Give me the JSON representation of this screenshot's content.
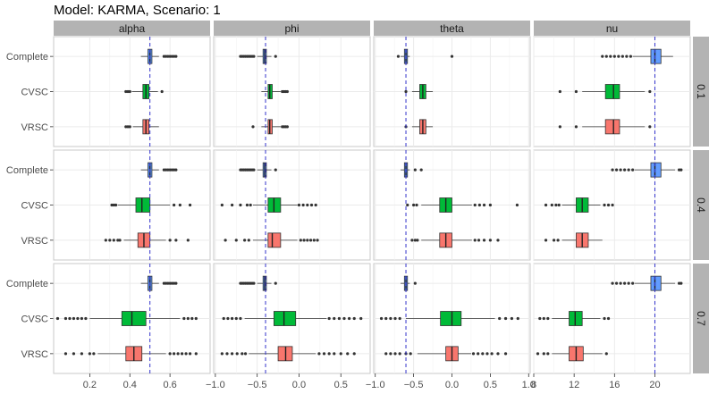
{
  "chart_data": {
    "type": "boxplot",
    "title": "Model: KARMA, Scenario: 1",
    "xlabel": "",
    "ylabel": "",
    "categories": [
      "Complete",
      "CVSC",
      "VRSC"
    ],
    "colors": {
      "Complete": "#619CFF",
      "CVSC": "#00BA38",
      "VRSC": "#F8766D"
    },
    "ref_line_color": "#3333cc",
    "strip_fill": "#b3b3b3",
    "panel_border": "#c8c8c8",
    "columns": [
      {
        "name": "alpha",
        "xlim": [
          0.02,
          0.8
        ],
        "ticks": [
          0.2,
          0.4,
          0.6
        ],
        "tick_labels": [
          "0.2",
          "0.4",
          "0.6"
        ],
        "true_value": 0.5
      },
      {
        "name": "phi",
        "xlim": [
          -1.02,
          0.85
        ],
        "ticks": [
          -1.0,
          -0.5,
          0.0,
          0.5
        ],
        "tick_labels": [
          "−1.0",
          "−0.5",
          "0.0",
          "0.5"
        ],
        "true_value": -0.4
      },
      {
        "name": "theta",
        "xlim": [
          -1.02,
          1.02
        ],
        "ticks": [
          -1.0,
          -0.5,
          0.0,
          0.5,
          1.0
        ],
        "tick_labels": [
          "−1.0",
          "−0.5",
          "0.0",
          "0.5",
          "1.0"
        ],
        "true_value": -0.6
      },
      {
        "name": "nu",
        "xlim": [
          8,
          23.5
        ],
        "ticks": [
          8,
          12,
          16,
          20
        ],
        "tick_labels": [
          "8",
          "12",
          "16",
          "20"
        ],
        "true_value": 20
      }
    ],
    "rows": [
      {
        "label": "0.1",
        "boxes": [
          [
            {
              "q1": 0.49,
              "med": 0.5,
              "q3": 0.51,
              "wlo": 0.455,
              "whi": 0.545,
              "outliers": [
                0.57,
                0.58,
                0.59,
                0.6,
                0.61,
                0.62,
                0.63
              ]
            },
            {
              "q1": 0.465,
              "med": 0.48,
              "q3": 0.495,
              "wlo": 0.41,
              "whi": 0.54,
              "outliers": [
                0.38,
                0.39,
                0.4,
                0.56
              ]
            },
            {
              "q1": 0.465,
              "med": 0.48,
              "q3": 0.495,
              "wlo": 0.415,
              "whi": 0.545,
              "outliers": [
                0.38,
                0.39,
                0.4
              ]
            }
          ],
          [
            {
              "q1": -0.43,
              "med": -0.41,
              "q3": -0.39,
              "wlo": -0.5,
              "whi": -0.33,
              "outliers": [
                -0.7,
                -0.68,
                -0.66,
                -0.64,
                -0.62,
                -0.6,
                -0.58,
                -0.56,
                -0.54,
                -0.28
              ]
            },
            {
              "q1": -0.37,
              "med": -0.35,
              "q3": -0.32,
              "wlo": -0.45,
              "whi": -0.22,
              "outliers": [
                -0.2,
                -0.18,
                -0.16,
                -0.14
              ]
            },
            {
              "q1": -0.37,
              "med": -0.35,
              "q3": -0.32,
              "wlo": -0.45,
              "whi": -0.22,
              "outliers": [
                -0.55,
                -0.2,
                -0.18,
                -0.16,
                -0.14
              ]
            }
          ],
          [
            {
              "q1": -0.62,
              "med": -0.6,
              "q3": -0.58,
              "wlo": -0.67,
              "whi": -0.55,
              "outliers": [
                -0.7,
                0.0
              ]
            },
            {
              "q1": -0.42,
              "med": -0.38,
              "q3": -0.34,
              "wlo": -0.52,
              "whi": -0.25,
              "outliers": [
                -0.6
              ]
            },
            {
              "q1": -0.42,
              "med": -0.38,
              "q3": -0.34,
              "wlo": -0.52,
              "whi": -0.25,
              "outliers": [
                -0.6
              ]
            }
          ],
          [
            {
              "q1": 19.6,
              "med": 20.0,
              "q3": 20.6,
              "wlo": 17.8,
              "whi": 21.8,
              "outliers": [
                14.8,
                15.2,
                15.6,
                16.0,
                16.4,
                16.8,
                17.2,
                17.6
              ]
            },
            {
              "q1": 15.1,
              "med": 15.9,
              "q3": 16.5,
              "wlo": 12.8,
              "whi": 19.0,
              "outliers": [
                10.6,
                12.2,
                19.5
              ]
            },
            {
              "q1": 15.1,
              "med": 15.9,
              "q3": 16.5,
              "wlo": 12.8,
              "whi": 19.0,
              "outliers": [
                10.6,
                12.2,
                19.5
              ]
            }
          ]
        ]
      },
      {
        "label": "0.4",
        "boxes": [
          [
            {
              "q1": 0.49,
              "med": 0.5,
              "q3": 0.51,
              "wlo": 0.455,
              "whi": 0.545,
              "outliers": [
                0.57,
                0.58,
                0.59,
                0.6,
                0.61,
                0.62,
                0.63
              ]
            },
            {
              "q1": 0.43,
              "med": 0.46,
              "q3": 0.5,
              "wlo": 0.34,
              "whi": 0.6,
              "outliers": [
                0.31,
                0.32,
                0.33,
                0.62,
                0.65,
                0.7
              ]
            },
            {
              "q1": 0.44,
              "med": 0.47,
              "q3": 0.5,
              "wlo": 0.37,
              "whi": 0.58,
              "outliers": [
                0.28,
                0.3,
                0.32,
                0.34,
                0.35,
                0.6,
                0.63,
                0.69
              ]
            }
          ],
          [
            {
              "q1": -0.43,
              "med": -0.41,
              "q3": -0.39,
              "wlo": -0.5,
              "whi": -0.33,
              "outliers": [
                -0.7,
                -0.68,
                -0.66,
                -0.64,
                -0.62,
                -0.6,
                -0.58,
                -0.56,
                -0.54,
                -0.28
              ]
            },
            {
              "q1": -0.37,
              "med": -0.3,
              "q3": -0.22,
              "wlo": -0.55,
              "whi": -0.02,
              "outliers": [
                -0.92,
                -0.8,
                -0.7,
                -0.62,
                -0.58,
                0.0,
                0.05,
                0.1,
                0.15,
                0.2
              ]
            },
            {
              "q1": -0.37,
              "med": -0.32,
              "q3": -0.22,
              "wlo": -0.55,
              "whi": -0.02,
              "outliers": [
                -0.88,
                -0.75,
                -0.65,
                -0.6,
                0.02,
                0.06,
                0.1,
                0.14,
                0.18,
                0.22
              ]
            }
          ],
          [
            {
              "q1": -0.62,
              "med": -0.6,
              "q3": -0.58,
              "wlo": -0.67,
              "whi": -0.55,
              "outliers": [
                -0.48,
                -0.4
              ]
            },
            {
              "q1": -0.16,
              "med": -0.08,
              "q3": 0.0,
              "wlo": -0.4,
              "whi": 0.26,
              "outliers": [
                -0.58,
                -0.5,
                -0.46,
                0.3,
                0.36,
                0.42,
                0.5,
                0.85
              ]
            },
            {
              "q1": -0.16,
              "med": -0.08,
              "q3": 0.0,
              "wlo": -0.4,
              "whi": 0.26,
              "outliers": [
                -0.52,
                -0.48,
                -0.45,
                0.3,
                0.35,
                0.42,
                0.5,
                0.6
              ]
            }
          ],
          [
            {
              "q1": 19.6,
              "med": 20.0,
              "q3": 20.6,
              "wlo": 18.0,
              "whi": 22.0,
              "outliers": [
                15.8,
                16.2,
                16.6,
                17.0,
                17.4,
                17.8,
                22.4,
                22.6
              ]
            },
            {
              "q1": 12.2,
              "med": 12.8,
              "q3": 13.4,
              "wlo": 10.8,
              "whi": 14.6,
              "outliers": [
                9.2,
                9.8,
                10.2,
                10.5,
                15.0,
                15.4,
                15.8
              ]
            },
            {
              "q1": 12.2,
              "med": 12.8,
              "q3": 13.4,
              "wlo": 10.8,
              "whi": 14.8,
              "outliers": [
                9.2,
                10.0,
                10.4
              ]
            }
          ]
        ]
      },
      {
        "label": "0.7",
        "boxes": [
          [
            {
              "q1": 0.49,
              "med": 0.5,
              "q3": 0.51,
              "wlo": 0.455,
              "whi": 0.545,
              "outliers": [
                0.57,
                0.58,
                0.59,
                0.6,
                0.61,
                0.62,
                0.63
              ]
            },
            {
              "q1": 0.36,
              "med": 0.41,
              "q3": 0.48,
              "wlo": 0.2,
              "whi": 0.65,
              "outliers": [
                0.04,
                0.08,
                0.1,
                0.12,
                0.14,
                0.16,
                0.18,
                0.67,
                0.69,
                0.71,
                0.73
              ]
            },
            {
              "q1": 0.38,
              "med": 0.42,
              "q3": 0.46,
              "wlo": 0.24,
              "whi": 0.58,
              "outliers": [
                0.08,
                0.12,
                0.16,
                0.2,
                0.22,
                0.6,
                0.62,
                0.64,
                0.66,
                0.68,
                0.7,
                0.73
              ]
            }
          ],
          [
            {
              "q1": -0.43,
              "med": -0.41,
              "q3": -0.39,
              "wlo": -0.5,
              "whi": -0.33,
              "outliers": [
                -0.7,
                -0.68,
                -0.66,
                -0.64,
                -0.62,
                -0.6,
                -0.58,
                -0.56,
                -0.54,
                -0.28
              ]
            },
            {
              "q1": -0.3,
              "med": -0.18,
              "q3": -0.04,
              "wlo": -0.65,
              "whi": 0.33,
              "outliers": [
                -0.9,
                -0.85,
                -0.8,
                -0.75,
                -0.7,
                0.36,
                0.42,
                0.48,
                0.54,
                0.6,
                0.66,
                0.74
              ]
            },
            {
              "q1": -0.25,
              "med": -0.16,
              "q3": -0.08,
              "wlo": -0.6,
              "whi": 0.2,
              "outliers": [
                -0.92,
                -0.86,
                -0.8,
                -0.74,
                -0.68,
                -0.64,
                0.24,
                0.3,
                0.36,
                0.42,
                0.5,
                0.58,
                0.66
              ]
            }
          ],
          [
            {
              "q1": -0.62,
              "med": -0.6,
              "q3": -0.58,
              "wlo": -0.67,
              "whi": -0.55,
              "outliers": [
                -0.48
              ]
            },
            {
              "q1": -0.15,
              "med": 0.0,
              "q3": 0.12,
              "wlo": -0.6,
              "whi": 0.56,
              "outliers": [
                -0.92,
                -0.86,
                -0.8,
                -0.74,
                -0.68,
                0.62,
                0.7,
                0.78,
                0.86
              ]
            },
            {
              "q1": -0.08,
              "med": 0.0,
              "q3": 0.08,
              "wlo": -0.45,
              "whi": 0.25,
              "outliers": [
                -0.86,
                -0.8,
                -0.74,
                -0.68,
                -0.6,
                -0.54,
                0.28,
                0.34,
                0.4,
                0.46,
                0.52,
                0.6,
                0.7
              ]
            }
          ],
          [
            {
              "q1": 19.6,
              "med": 20.0,
              "q3": 20.6,
              "wlo": 18.0,
              "whi": 22.0,
              "outliers": [
                15.8,
                16.2,
                16.6,
                17.0,
                17.4,
                17.8,
                22.4,
                22.6
              ]
            },
            {
              "q1": 11.5,
              "med": 12.1,
              "q3": 12.8,
              "wlo": 9.8,
              "whi": 14.6,
              "outliers": [
                8.6,
                9.0,
                9.4,
                15.0,
                15.4
              ]
            },
            {
              "q1": 11.5,
              "med": 12.2,
              "q3": 12.9,
              "wlo": 9.8,
              "whi": 14.8,
              "outliers": [
                8.4,
                9.0,
                9.4,
                15.2
              ]
            }
          ]
        ]
      }
    ]
  }
}
